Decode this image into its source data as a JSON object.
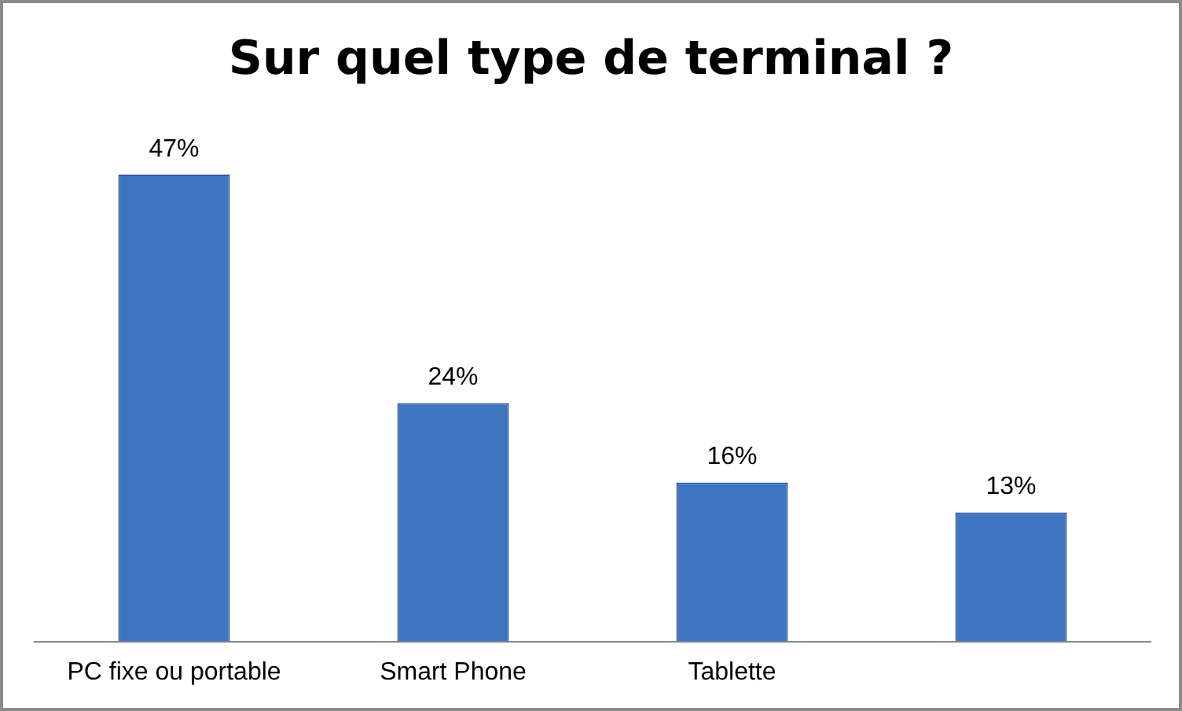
{
  "chart_data": {
    "type": "bar",
    "title": "Sur quel type de terminal ?",
    "categories": [
      "PC fixe ou portable",
      "Smart Phone",
      "Tablette",
      null
    ],
    "values": [
      47,
      24,
      16,
      13
    ],
    "value_labels": [
      "47%",
      "24%",
      "16%",
      "13%"
    ],
    "color": "#3f74c0",
    "grid": false,
    "legend": false
  }
}
